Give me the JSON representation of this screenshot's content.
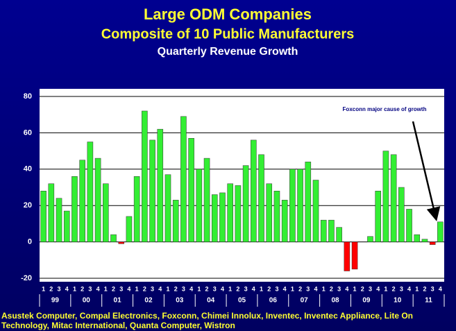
{
  "chart_data": {
    "type": "bar",
    "title": "Large ODM Companies",
    "subtitle": "Composite of 10 Public Manufacturers",
    "subtitle2": "Quarterly Revenue Growth",
    "categories": [
      "1",
      "2",
      "3",
      "4",
      "1",
      "2",
      "3",
      "4",
      "1",
      "2",
      "3",
      "4",
      "1",
      "2",
      "3",
      "4",
      "1",
      "2",
      "3",
      "4",
      "1",
      "2",
      "3",
      "4",
      "1",
      "2",
      "3",
      "4",
      "1",
      "2",
      "3",
      "4",
      "1",
      "2",
      "3",
      "4",
      "1",
      "2",
      "3",
      "4",
      "1",
      "2",
      "3",
      "4",
      "1",
      "2",
      "3",
      "4",
      "1",
      "2",
      "3",
      "4"
    ],
    "years": [
      "99",
      "00",
      "01",
      "02",
      "03",
      "04",
      "05",
      "06",
      "07",
      "08",
      "09",
      "10",
      "11"
    ],
    "values": [
      28,
      32,
      24,
      17,
      36,
      45,
      55,
      46,
      32,
      4,
      -1,
      14,
      36,
      72,
      56,
      62,
      37,
      23,
      69,
      57,
      40,
      46,
      26,
      27,
      32,
      31,
      42,
      56,
      48,
      32,
      28,
      23,
      40,
      40,
      44,
      34,
      12,
      12,
      8,
      -16,
      -15,
      0,
      3,
      28,
      50,
      48,
      30,
      18,
      4,
      1.5,
      -1.5,
      11
    ],
    "color": "#33ee33",
    "negative_color": "#ff0000",
    "ylim": [
      -20,
      80
    ],
    "yticks": [
      -20,
      0,
      20,
      40,
      60,
      80
    ],
    "grid": true,
    "annotation": "Foxconn major cause of growth",
    "footnote": "Asustek Computer, Compal Electronics, Foxconn, Chimei Innolux, Inventec, Inventec Appliance, Lite On Technology, Mitac International, Quanta Computer, Wistron"
  }
}
